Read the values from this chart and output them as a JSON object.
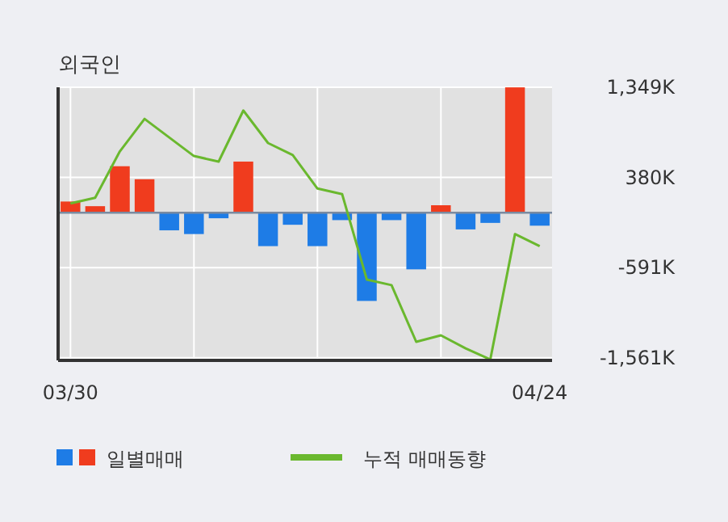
{
  "chart_data": {
    "type": "bar",
    "title": "외국인",
    "categories": [
      "03/30",
      null,
      null,
      null,
      null,
      null,
      null,
      null,
      null,
      null,
      null,
      null,
      null,
      null,
      null,
      null,
      null,
      null,
      null,
      "04/24"
    ],
    "series": [
      {
        "name": "일별매매",
        "colors": [
          "#f03c1e",
          "#f03c1e",
          "#f03c1e",
          "#f03c1e",
          "#1e7ce6",
          "#1e7ce6",
          "#1e7ce6",
          "#f03c1e",
          "#1e7ce6",
          "#1e7ce6",
          "#1e7ce6",
          "#1e7ce6",
          "#1e7ce6",
          "#1e7ce6",
          "#1e7ce6",
          "#f03c1e",
          "#1e7ce6",
          "#1e7ce6",
          "#f03c1e",
          "#1e7ce6"
        ],
        "values": [
          120,
          70,
          500,
          360,
          -190,
          -230,
          -60,
          550,
          -360,
          -130,
          -360,
          -80,
          -950,
          -80,
          -610,
          80,
          -180,
          -110,
          1349,
          -140
        ]
      },
      {
        "name": "누적 매매동향",
        "type": "line",
        "color": "#6ab82e",
        "values": [
          100,
          160,
          660,
          1010,
          810,
          610,
          550,
          1100,
          750,
          620,
          260,
          200,
          -720,
          -780,
          -1390,
          -1320,
          -1460,
          -1580,
          -230,
          -360
        ]
      }
    ],
    "ylim": [
      -1590,
      1350
    ],
    "yticks": [
      {
        "value": 1349,
        "label": "1,349K"
      },
      {
        "value": 380,
        "label": "380K"
      },
      {
        "value": -591,
        "label": "-591K"
      },
      {
        "value": -1561,
        "label": "-1,561K"
      }
    ],
    "grid": true,
    "legend": "bottom"
  }
}
